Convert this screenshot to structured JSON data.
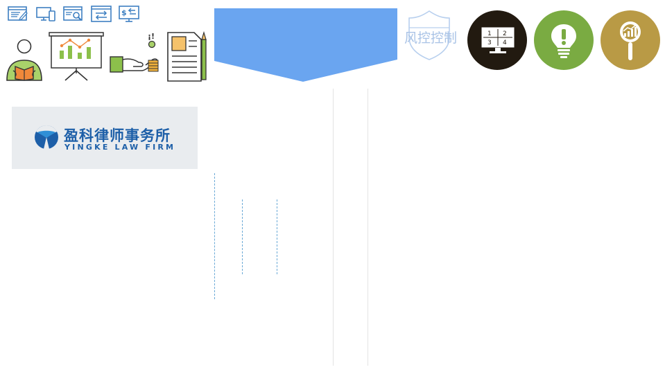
{
  "shield": {
    "label": "风控控制"
  },
  "logo": {
    "name_cn": "盈科律师事务所",
    "name_en": "YINGKE LAW FIRM"
  },
  "colors": {
    "banner_blue": "#6aa5f0",
    "circle_dark": "#221a10",
    "circle_green": "#7aab42",
    "circle_gold": "#b99a45",
    "icon_blue": "#3d7fc1",
    "logo_blue": "#1d5fa8"
  },
  "icons": [
    "document-edit-icon",
    "devices-icon",
    "web-search-icon",
    "transfer-icon",
    "payment-screen-icon",
    "reading-person-icon",
    "presentation-chart-icon",
    "hand-coins-icon",
    "document-pencil-icon",
    "shield-icon",
    "monitor-grid-icon",
    "lightbulb-alert-icon",
    "magnifier-chart-icon"
  ],
  "monitor_grid": [
    "1",
    "2",
    "3",
    "4"
  ]
}
